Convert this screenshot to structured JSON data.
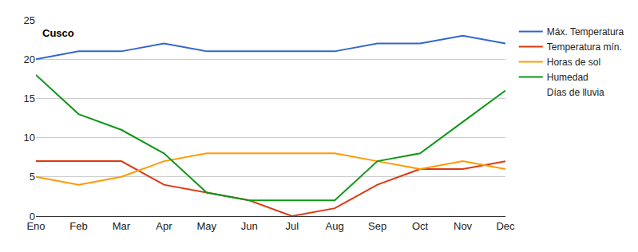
{
  "chart_data": {
    "type": "line",
    "title": "Cusco",
    "categories": [
      "Eno",
      "Feb",
      "Mar",
      "Apr",
      "May",
      "Jun",
      "Jul",
      "Aug",
      "Sep",
      "Oct",
      "Nov",
      "Dec"
    ],
    "series": [
      {
        "name": "Máx. Temperatura",
        "color": "#3366cc",
        "values": [
          20,
          21,
          21,
          22,
          21,
          21,
          21,
          21,
          22,
          22,
          23,
          22
        ]
      },
      {
        "name": "Temperatura mín.",
        "color": "#dc3912",
        "values": [
          7,
          7,
          7,
          4,
          3,
          2,
          0,
          1,
          4,
          6,
          6,
          7
        ]
      },
      {
        "name": "Horas de sol",
        "color": "#ff9900",
        "values": [
          5,
          4,
          5,
          7,
          8,
          8,
          8,
          8,
          7,
          6,
          7,
          6
        ]
      },
      {
        "name": "Humedad",
        "color": "#109618",
        "values": [
          18,
          13,
          11,
          8,
          3,
          2,
          2,
          2,
          7,
          8,
          12,
          16
        ]
      },
      {
        "name": "Días de lluvia",
        "color": "#ffffff",
        "values": [
          null,
          null,
          null,
          null,
          null,
          null,
          null,
          null,
          null,
          null,
          null,
          null
        ]
      }
    ],
    "ylim": [
      0,
      25
    ],
    "yticks": [
      0,
      5,
      10,
      15,
      20,
      25
    ],
    "grid": true,
    "legend": "right"
  }
}
